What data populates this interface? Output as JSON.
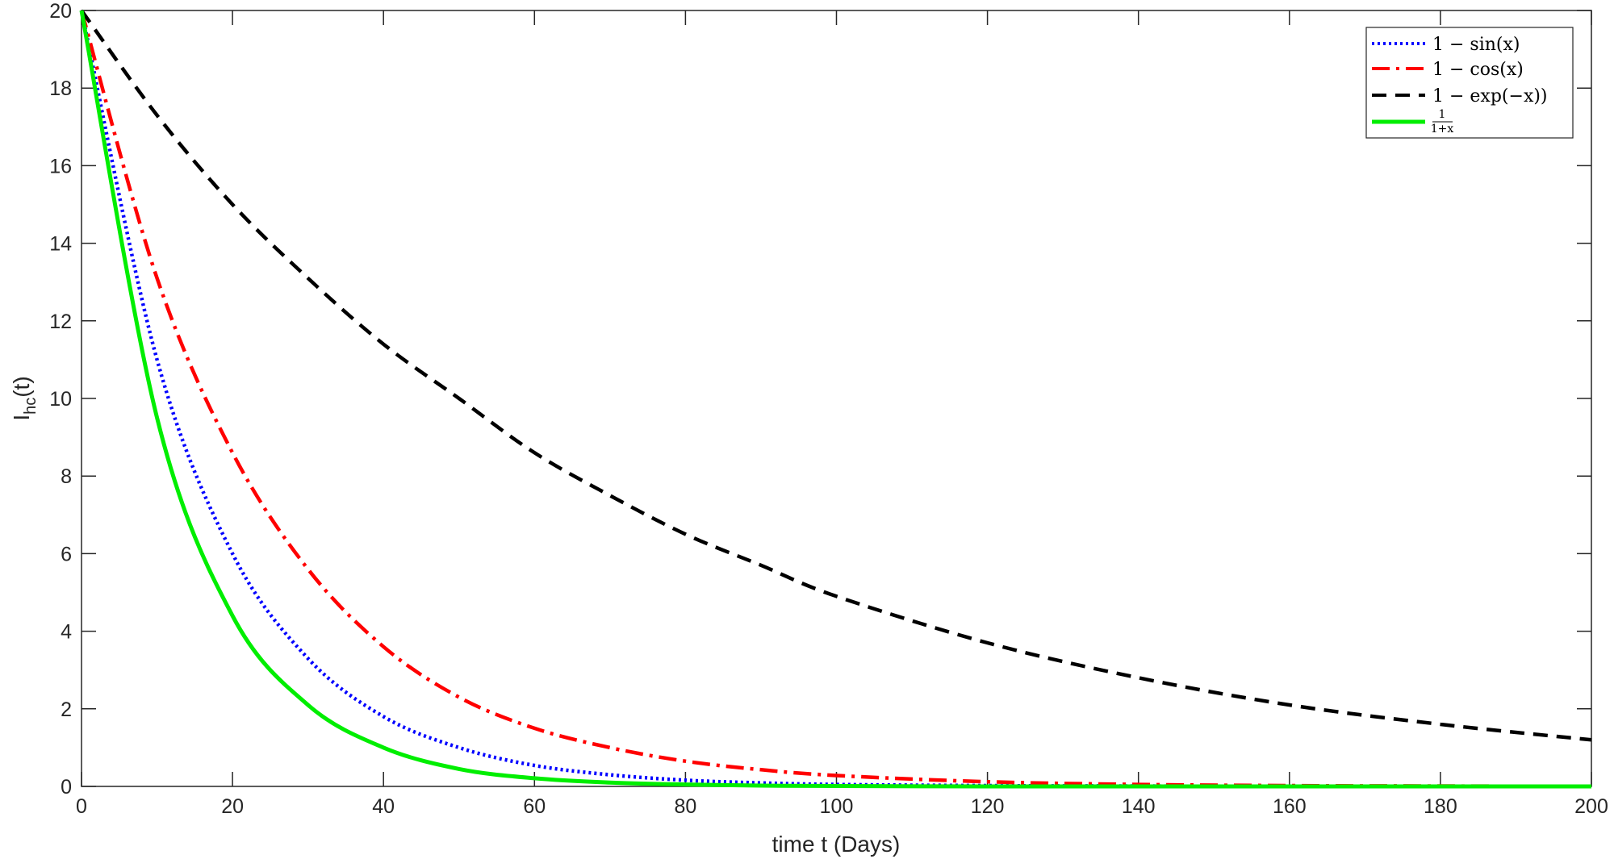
{
  "chart_data": {
    "type": "line",
    "xlabel": "time t (Days)",
    "ylabel_main": "I",
    "ylabel_sub": "hc",
    "ylabel_suffix": "(t)",
    "xlim": [
      0,
      200
    ],
    "ylim": [
      0,
      20
    ],
    "xticks": [
      0,
      20,
      40,
      60,
      80,
      100,
      120,
      140,
      160,
      180,
      200
    ],
    "yticks": [
      0,
      2,
      4,
      6,
      8,
      10,
      12,
      14,
      16,
      18,
      20
    ],
    "grid": false,
    "legend_position": "top-right",
    "series": [
      {
        "name": "1 − sin(x)",
        "color": "#0000ff",
        "style": "dotted",
        "x": [
          0,
          10,
          20,
          30,
          40,
          50,
          60,
          70,
          80,
          90,
          100,
          120,
          140,
          160,
          180,
          200
        ],
        "values": [
          20,
          11.0,
          6.0,
          3.3,
          1.8,
          1.0,
          0.54,
          0.3,
          0.16,
          0.09,
          0.05,
          0.02,
          0.01,
          0.0,
          0.0,
          0.0
        ]
      },
      {
        "name": "1 − cos(x)",
        "color": "#ff0000",
        "style": "dashdot",
        "x": [
          0,
          10,
          20,
          30,
          40,
          50,
          60,
          70,
          80,
          90,
          100,
          120,
          140,
          160,
          180,
          200
        ],
        "values": [
          20,
          13.1,
          8.6,
          5.6,
          3.6,
          2.3,
          1.5,
          1.0,
          0.65,
          0.43,
          0.28,
          0.12,
          0.05,
          0.02,
          0.01,
          0.0
        ]
      },
      {
        "name": "1 − exp(−x))",
        "color": "#000000",
        "style": "dashed",
        "x": [
          0,
          10,
          20,
          30,
          40,
          50,
          60,
          70,
          80,
          90,
          100,
          120,
          140,
          160,
          180,
          200
        ],
        "values": [
          20,
          17.3,
          15.0,
          13.1,
          11.4,
          10.0,
          8.6,
          7.5,
          6.5,
          5.7,
          4.9,
          3.7,
          2.8,
          2.1,
          1.6,
          1.2
        ]
      },
      {
        "name_num": "1",
        "name_den": "1+x",
        "color": "#00ee00",
        "style": "solid",
        "x": [
          0,
          10,
          20,
          30,
          40,
          50,
          60,
          70,
          80,
          90,
          100,
          120,
          140,
          160,
          180,
          200
        ],
        "values": [
          20,
          9.5,
          4.4,
          2.1,
          1.0,
          0.45,
          0.21,
          0.1,
          0.05,
          0.02,
          0.01,
          0.0,
          0.0,
          0.0,
          0.0,
          0.0
        ]
      }
    ]
  }
}
